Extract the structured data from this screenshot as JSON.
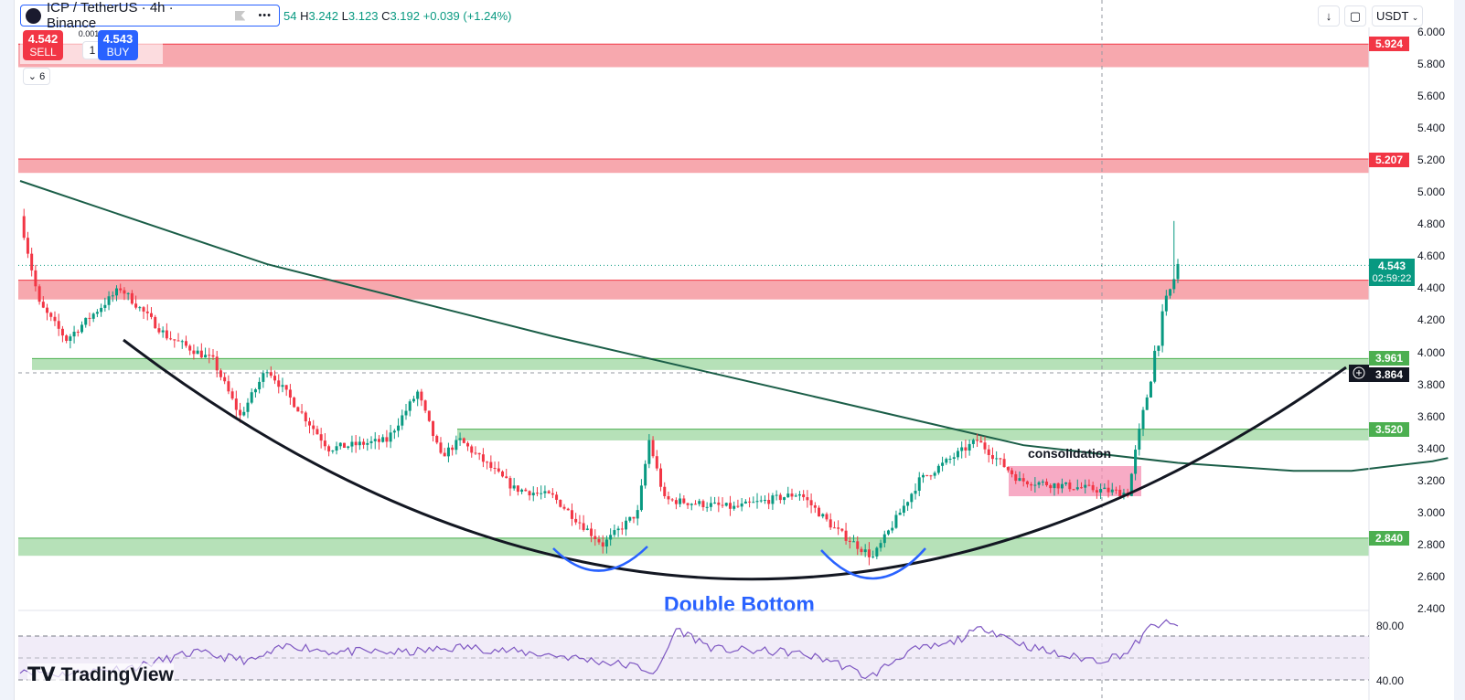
{
  "header": {
    "symbol": "ICP / TetherUS · 4h · Binance",
    "ohlc": {
      "o_tail": "54",
      "h_label": "H",
      "h": "3.242",
      "l_label": "L",
      "l": "3.123",
      "c_label": "C",
      "c": "3.192",
      "change": "+0.039 (+1.24%)"
    }
  },
  "trade": {
    "sell_price": "4.542",
    "sell_label": "SELL",
    "buy_price": "4.543",
    "buy_label": "BUY",
    "spread": "0.001",
    "qty": "1"
  },
  "collapse": {
    "label": "6"
  },
  "toolbar": {
    "currency": "USDT"
  },
  "price_axis": {
    "ticks": [
      "6.000",
      "5.800",
      "5.600",
      "5.400",
      "5.200",
      "5.000",
      "4.800",
      "4.600",
      "4.400",
      "4.200",
      "4.000",
      "3.800",
      "3.600",
      "3.400",
      "3.200",
      "3.000",
      "2.800",
      "2.600",
      "2.400"
    ],
    "labels": {
      "r1": "5.924",
      "r2": "5.207",
      "s1": "3.961",
      "crosshair": "3.864",
      "s2": "3.520",
      "s3": "2.840",
      "last": "4.543",
      "countdown": "02:59:22"
    }
  },
  "rsi_axis": {
    "ticks": [
      "80.00",
      "40.00"
    ]
  },
  "annotations": {
    "consolidation": "consolidation",
    "pattern": "Double Bottom"
  },
  "branding": "TradingView",
  "colors": {
    "up": "#089981",
    "down": "#f23645",
    "resistance": "#f7a8ae",
    "support": "#b2dfb4",
    "ema": "#1b5e48",
    "rsi": "#7e57c2",
    "pattern": "#2962ff"
  },
  "zones": [
    {
      "type": "resistance",
      "top": 5.924,
      "bottom": 5.78
    },
    {
      "type": "resistance",
      "top": 5.207,
      "bottom": 5.12
    },
    {
      "type": "resistance",
      "top": 4.45,
      "bottom": 4.33
    },
    {
      "type": "support",
      "top": 3.961,
      "bottom": 3.89
    },
    {
      "type": "support",
      "top": 3.52,
      "bottom": 3.45
    },
    {
      "type": "support",
      "top": 2.84,
      "bottom": 2.73
    }
  ],
  "price_path": [
    [
      0,
      4.85
    ],
    [
      5,
      4.3
    ],
    [
      12,
      4.08
    ],
    [
      26,
      4.4
    ],
    [
      38,
      4.1
    ],
    [
      50,
      3.95
    ],
    [
      57,
      3.6
    ],
    [
      64,
      3.9
    ],
    [
      80,
      3.4
    ],
    [
      95,
      3.45
    ],
    [
      103,
      3.75
    ],
    [
      109,
      3.35
    ],
    [
      114,
      3.45
    ],
    [
      128,
      3.15
    ],
    [
      138,
      3.1
    ],
    [
      151,
      2.8
    ],
    [
      160,
      3.0
    ],
    [
      163,
      3.45
    ],
    [
      167,
      3.08
    ],
    [
      185,
      3.03
    ],
    [
      202,
      3.12
    ],
    [
      211,
      2.9
    ],
    [
      221,
      2.72
    ],
    [
      233,
      3.2
    ],
    [
      248,
      3.45
    ],
    [
      259,
      3.2
    ],
    [
      287,
      3.12
    ],
    [
      291,
      3.6
    ],
    [
      294,
      4.0
    ],
    [
      297,
      4.3
    ],
    [
      300,
      4.54
    ]
  ],
  "ema_path": [
    [
      0,
      5.07
    ],
    [
      64,
      4.55
    ],
    [
      138,
      4.1
    ],
    [
      210,
      3.7
    ],
    [
      260,
      3.42
    ],
    [
      300,
      3.31
    ],
    [
      330,
      3.26
    ],
    [
      345,
      3.26
    ],
    [
      366,
      3.32
    ],
    [
      370,
      3.34
    ]
  ],
  "rsi_path": [
    [
      0,
      40
    ],
    [
      10,
      35
    ],
    [
      30,
      42
    ],
    [
      45,
      55
    ],
    [
      60,
      47
    ],
    [
      70,
      62
    ],
    [
      80,
      56
    ],
    [
      100,
      55
    ],
    [
      115,
      60
    ],
    [
      140,
      52
    ],
    [
      160,
      42
    ],
    [
      165,
      36
    ],
    [
      170,
      77
    ],
    [
      180,
      58
    ],
    [
      200,
      55
    ],
    [
      210,
      48
    ],
    [
      220,
      32
    ],
    [
      230,
      56
    ],
    [
      240,
      62
    ],
    [
      250,
      78
    ],
    [
      260,
      62
    ],
    [
      270,
      52
    ],
    [
      280,
      48
    ],
    [
      287,
      55
    ],
    [
      293,
      78
    ],
    [
      296,
      82
    ],
    [
      300,
      78
    ]
  ]
}
